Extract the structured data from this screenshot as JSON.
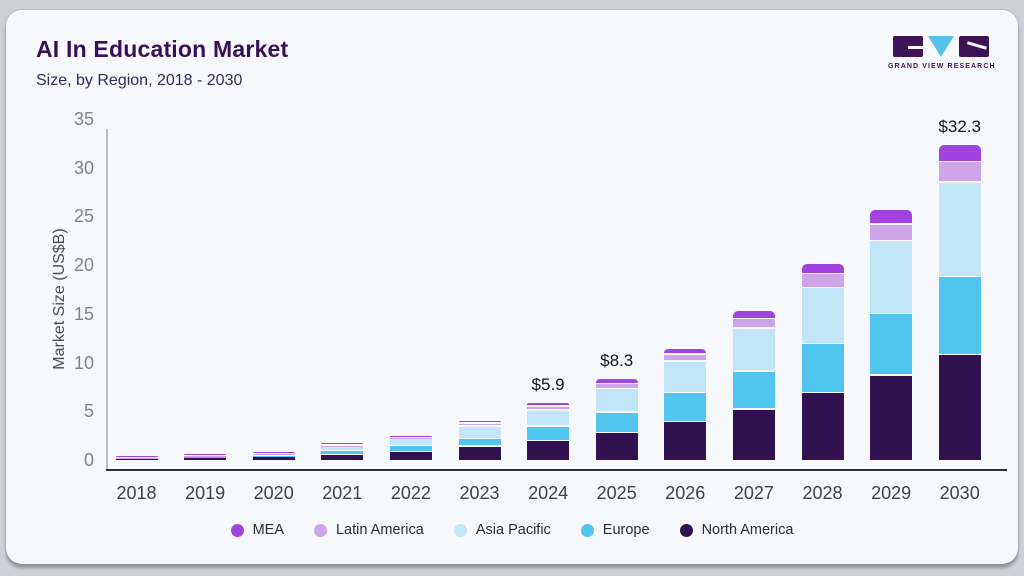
{
  "header": {
    "title": "AI In Education Market",
    "subtitle": "Size, by Region, 2018 - 2030"
  },
  "logo": {
    "text": "GRAND VIEW RESEARCH",
    "purple": "#3d1556",
    "blue": "#56c0ea"
  },
  "chart_data": {
    "type": "bar",
    "stacked": true,
    "title": "AI In Education Market",
    "subtitle": "Size, by Region, 2018 - 2030",
    "xlabel": "",
    "ylabel": "Market Size (US$B)",
    "ylim": [
      0,
      35
    ],
    "yticks": [
      0,
      5,
      10,
      15,
      20,
      25,
      30,
      35
    ],
    "grid": false,
    "legend_position": "bottom",
    "categories": [
      "2018",
      "2019",
      "2020",
      "2021",
      "2022",
      "2023",
      "2024",
      "2025",
      "2026",
      "2027",
      "2028",
      "2029",
      "2030"
    ],
    "series": [
      {
        "name": "North America",
        "color": "#321150",
        "values": [
          0.3,
          0.35,
          0.45,
          0.65,
          0.95,
          1.5,
          2.1,
          2.9,
          4.0,
          5.3,
          7.0,
          8.8,
          10.9
        ]
      },
      {
        "name": "Europe",
        "color": "#4fc5f0",
        "values": [
          0.04,
          0.1,
          0.15,
          0.4,
          0.6,
          0.8,
          1.45,
          2.1,
          3.0,
          3.9,
          5.0,
          6.3,
          8.0
        ]
      },
      {
        "name": "Asia Pacific",
        "color": "#c2e6f7",
        "values": [
          0.04,
          0.1,
          0.15,
          0.45,
          0.8,
          1.25,
          1.65,
          2.4,
          3.25,
          4.4,
          5.8,
          7.5,
          9.7
        ]
      },
      {
        "name": "Latin America",
        "color": "#cfa5ea",
        "values": [
          0.01,
          0.03,
          0.03,
          0.1,
          0.1,
          0.3,
          0.4,
          0.55,
          0.7,
          1.0,
          1.4,
          1.7,
          2.1
        ]
      },
      {
        "name": "MEA",
        "color": "#a243df",
        "values": [
          0.01,
          0.02,
          0.02,
          0.1,
          0.05,
          0.15,
          0.3,
          0.35,
          0.45,
          0.7,
          0.9,
          1.4,
          1.6
        ]
      }
    ],
    "legend_order": [
      "MEA",
      "Latin America",
      "Asia Pacific",
      "Europe",
      "North America"
    ],
    "annotations": [
      {
        "category": "2024",
        "label": "$5.9"
      },
      {
        "category": "2025",
        "label": "$8.3"
      },
      {
        "category": "2030",
        "label": "$32.3"
      }
    ]
  }
}
